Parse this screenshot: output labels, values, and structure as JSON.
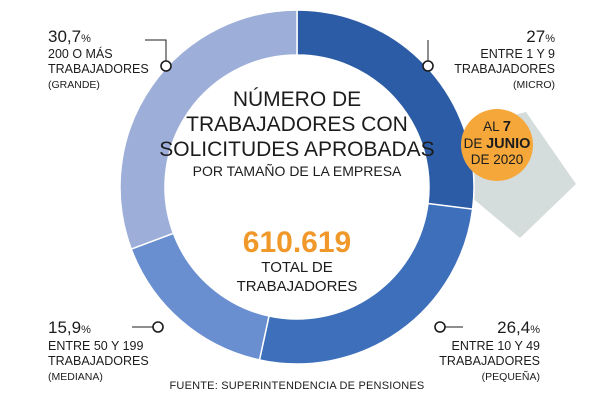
{
  "chart_data": {
    "type": "pie",
    "variant": "donut",
    "title_lines": [
      "NÚMERO DE",
      "TRABAJADORES CON",
      "SOLICITUDES APROBADAS"
    ],
    "subtitle": "POR TAMAÑO DE LA EMPRESA",
    "total_value": "610.619",
    "total_label_lines": [
      "TOTAL DE",
      "TRABAJADORES"
    ],
    "date_badge": {
      "line1_prefix": "AL ",
      "line1_day": "7",
      "line2_prefix": "DE ",
      "line2_month": "JUNIO",
      "line3": "DE 2020"
    },
    "slices": [
      {
        "value": 27,
        "value_label": "27",
        "pct_sign": "%",
        "label_lines": [
          "ENTRE 1 Y 9",
          "TRABAJADORES"
        ],
        "category": "(MICRO)",
        "color": "#2d5ca6"
      },
      {
        "value": 26.4,
        "value_label": "26,4",
        "pct_sign": "%",
        "label_lines": [
          "ENTRE 10 Y 49",
          "TRABAJADORES"
        ],
        "category": "(PEQUEÑA)",
        "color": "#3d6fbb"
      },
      {
        "value": 15.9,
        "value_label": "15,9",
        "pct_sign": "%",
        "label_lines": [
          "ENTRE 50 Y 199",
          "TRABAJADORES"
        ],
        "category": "(MEDIANA)",
        "color": "#6a8fd0"
      },
      {
        "value": 30.7,
        "value_label": "30,7",
        "pct_sign": "%",
        "label_lines": [
          "200 O MÁS",
          "TRABAJADORES"
        ],
        "category": "(GRANDE)",
        "color": "#9dafd9"
      }
    ],
    "source": "FUENTE: SUPERINTENDENCIA DE PENSIONES",
    "colors": {
      "accent": "#f0982a",
      "badge": "#f5a73a",
      "shadow": "#d5dcdc"
    }
  }
}
